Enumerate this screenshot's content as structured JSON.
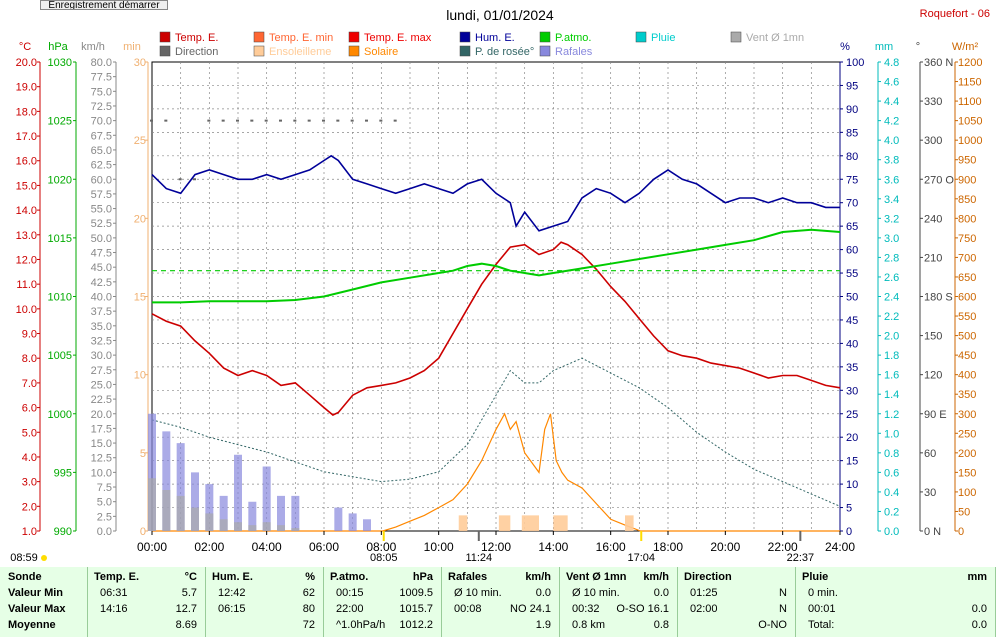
{
  "button_label": "Enregistrement démarrer",
  "station": "Roquefort - 06",
  "chart_data": {
    "type": "line",
    "title": "lundi, 01/01/2024",
    "xlabel": "",
    "ylabel": "",
    "x_ticks": [
      "00:00",
      "02:00",
      "04:00",
      "06:00",
      "08:00",
      "10:00",
      "12:00",
      "14:00",
      "16:00",
      "18:00",
      "20:00",
      "22:00",
      "24:00"
    ],
    "x_range_hours": [
      0,
      24
    ],
    "grid": true,
    "legend_position": "top",
    "legend": [
      {
        "label": "Temp. E.",
        "color": "#cc0000"
      },
      {
        "label": "Temp. E. min",
        "color": "#ff6633"
      },
      {
        "label": "Temp. E. max",
        "color": "#ee0000"
      },
      {
        "label": "Hum. E.",
        "color": "#000099"
      },
      {
        "label": "P.atmo.",
        "color": "#00cc00"
      },
      {
        "label": "Pluie",
        "color": "#00cccc"
      },
      {
        "label": "Vent Ø 1mn",
        "color": "#aaaaaa"
      },
      {
        "label": "Direction",
        "color": "#666666"
      },
      {
        "label": "Ensoleilleme",
        "color": "#ffcc99"
      },
      {
        "label": "Solaire",
        "color": "#ff8800"
      },
      {
        "label": "P. de rosée°",
        "color": "#336666"
      },
      {
        "label": "Rafales",
        "color": "#8888dd"
      }
    ],
    "axes": {
      "temp": {
        "unit": "°C",
        "range": [
          1,
          20
        ],
        "step": 1,
        "color": "#cc0000"
      },
      "press": {
        "unit": "hPa",
        "range": [
          990,
          1030
        ],
        "color": "#00aa00",
        "ticks": [
          990,
          995,
          1000,
          1005,
          1010,
          1015,
          1020,
          1025,
          1030
        ]
      },
      "wind": {
        "unit": "km/h",
        "range": [
          0,
          80
        ],
        "step": 2.5,
        "color": "#888888"
      },
      "min": {
        "unit": "min",
        "range": [
          0,
          30
        ],
        "color": "#f0b070",
        "ticks": [
          0,
          5,
          10,
          15,
          20,
          25,
          30
        ]
      },
      "hum": {
        "unit": "%",
        "range": [
          0,
          100
        ],
        "step": 5,
        "color": "#000080"
      },
      "rain": {
        "unit": "mm",
        "range": [
          0,
          4.8
        ],
        "step": 0.2,
        "color": "#00bbbb"
      },
      "dir": {
        "unit": "°",
        "range": [
          0,
          360
        ],
        "color": "#444444",
        "ticks": [
          0,
          30,
          60,
          90,
          120,
          150,
          180,
          210,
          240,
          270,
          300,
          330,
          360
        ],
        "labels": {
          "0": "N",
          "90": "E",
          "180": "S",
          "270": "O",
          "360": "N"
        }
      },
      "solar": {
        "unit": "W/m²",
        "range": [
          0,
          1200
        ],
        "step": 50,
        "color": "#cc6600"
      }
    },
    "events": {
      "sunrise": "08:05",
      "sunset": "17:04",
      "moonrise": "22:37",
      "moonset": "11:24",
      "top_left_time": "08:59"
    },
    "series": [
      {
        "name": "Temp. E.",
        "axis": "temp",
        "color": "#cc0000",
        "x": [
          0,
          0.5,
          1,
          1.5,
          2,
          2.5,
          3,
          3.5,
          4,
          4.5,
          5,
          5.5,
          6,
          6.31,
          6.5,
          7,
          7.5,
          8,
          8.5,
          9,
          9.5,
          10,
          10.5,
          11,
          11.5,
          12,
          12.5,
          13,
          13.5,
          14,
          14.27,
          14.5,
          15,
          15.5,
          16,
          16.5,
          17,
          17.5,
          18,
          18.5,
          19,
          19.5,
          20,
          20.5,
          21,
          21.5,
          22,
          22.5,
          23,
          23.5,
          24
        ],
        "y": [
          9.8,
          9.5,
          9.3,
          8.7,
          8.2,
          7.6,
          7.3,
          7.5,
          7.3,
          6.9,
          7.0,
          6.5,
          6.0,
          5.7,
          5.8,
          6.5,
          6.8,
          6.9,
          7.0,
          7.2,
          7.5,
          8.0,
          9.0,
          10.0,
          11.0,
          11.8,
          12.5,
          12.6,
          12.2,
          12.4,
          12.7,
          12.6,
          12.2,
          11.6,
          10.9,
          10.3,
          9.6,
          8.9,
          8.3,
          8.1,
          8.0,
          7.8,
          7.7,
          7.6,
          7.4,
          7.2,
          7.3,
          7.3,
          7.1,
          6.9,
          6.8
        ]
      },
      {
        "name": "Hum. E.",
        "axis": "hum",
        "color": "#000099",
        "x": [
          0,
          0.5,
          1,
          1.5,
          2,
          2.5,
          3,
          3.5,
          4,
          4.5,
          5,
          5.5,
          6,
          6.25,
          6.5,
          7,
          7.5,
          8,
          8.5,
          9,
          9.5,
          10,
          10.5,
          11,
          11.5,
          12,
          12.5,
          12.7,
          13,
          13.5,
          14,
          14.5,
          15,
          15.5,
          16,
          16.5,
          17,
          17.5,
          18,
          18.5,
          19,
          19.5,
          20,
          20.5,
          21,
          21.5,
          22,
          22.5,
          23,
          23.5,
          24
        ],
        "y": [
          76,
          73,
          72,
          76,
          77,
          76,
          75,
          75,
          76,
          75,
          76,
          77,
          79,
          80,
          79,
          75,
          74,
          73,
          72,
          73,
          74,
          73,
          72,
          74,
          75,
          72,
          70,
          65,
          68,
          64,
          65,
          66,
          71,
          73,
          72,
          70,
          72,
          75,
          77,
          75,
          74,
          72,
          70,
          71,
          71,
          70,
          71,
          70,
          70,
          69,
          69
        ]
      },
      {
        "name": "P.atmo.",
        "axis": "press",
        "color": "#00cc00",
        "x": [
          0,
          1,
          2,
          3,
          4,
          5,
          6,
          7,
          8,
          9,
          10,
          10.5,
          11,
          11.5,
          12,
          12.5,
          13,
          13.5,
          14,
          15,
          16,
          17,
          18,
          19,
          20,
          21,
          22,
          23,
          24
        ],
        "y": [
          1009.5,
          1009.5,
          1009.6,
          1009.6,
          1009.6,
          1009.7,
          1010.0,
          1010.6,
          1011.2,
          1011.6,
          1012.0,
          1012.2,
          1012.6,
          1012.8,
          1012.6,
          1012.2,
          1012.0,
          1011.8,
          1012.0,
          1012.4,
          1012.8,
          1013.2,
          1013.6,
          1014.0,
          1014.4,
          1014.8,
          1015.5,
          1015.7,
          1015.5
        ]
      },
      {
        "name": "P. de rosée°",
        "axis": "temp",
        "color": "#336666",
        "x": [
          0,
          1,
          2,
          3,
          4,
          5,
          6,
          7,
          8,
          9,
          10,
          11,
          12,
          12.5,
          13,
          13.5,
          14,
          15,
          16,
          17,
          18,
          19,
          20,
          21,
          22,
          23,
          24
        ],
        "y": [
          5.5,
          5.2,
          4.8,
          4.5,
          4.2,
          3.8,
          3.4,
          3.2,
          3.0,
          3.1,
          3.4,
          4.5,
          6.5,
          7.5,
          7.0,
          7.0,
          7.5,
          8.0,
          7.4,
          6.8,
          6.0,
          5.0,
          4.2,
          3.5,
          3.0,
          2.5,
          2.0
        ]
      },
      {
        "name": "Solaire",
        "axis": "solar",
        "color": "#ff8800",
        "x": [
          0,
          8.05,
          8.5,
          9,
          9.5,
          10,
          10.5,
          11,
          11.5,
          12,
          12.3,
          12.5,
          12.7,
          13,
          13.5,
          13.7,
          13.9,
          14.1,
          14.3,
          14.5,
          15,
          15.5,
          16,
          16.5,
          17.04,
          17.5,
          24
        ],
        "y": [
          0,
          0,
          10,
          25,
          40,
          60,
          80,
          120,
          180,
          260,
          300,
          260,
          280,
          200,
          150,
          260,
          300,
          180,
          150,
          130,
          110,
          70,
          30,
          15,
          0,
          0,
          0
        ]
      },
      {
        "name": "Rafales",
        "axis": "wind",
        "color": "#8888dd",
        "x": [
          0,
          0.5,
          1,
          1.5,
          2,
          2.5,
          3,
          3.5,
          4,
          4.5,
          5,
          5.5,
          6,
          6.5,
          7,
          7.5,
          8,
          8.5,
          24
        ],
        "y": [
          20,
          17,
          15,
          10,
          8,
          6,
          13,
          5,
          11,
          6,
          6,
          0,
          0,
          4,
          3,
          2,
          0,
          0,
          0
        ]
      },
      {
        "name": "Vent Ø 1mn",
        "axis": "wind",
        "color": "#aaaaaa",
        "x": [
          0,
          0.5,
          1,
          1.5,
          2,
          2.5,
          3,
          3.5,
          4,
          4.5,
          5,
          5.5,
          6,
          24
        ],
        "y": [
          9,
          7,
          6,
          4,
          3,
          2,
          1.5,
          1,
          1.5,
          1,
          0.5,
          0,
          0,
          0
        ]
      },
      {
        "name": "Direction",
        "axis": "dir",
        "color": "#666666",
        "x": [
          0,
          0.5,
          1,
          1.5,
          2,
          2.5,
          3,
          3.5,
          4,
          4.5,
          5,
          5.5,
          6,
          6.5,
          7,
          7.5,
          8,
          8.5
        ],
        "y": [
          315,
          315,
          270,
          270,
          315,
          315,
          315,
          315,
          315,
          315,
          315,
          315,
          315,
          315,
          315,
          315,
          315,
          315
        ]
      },
      {
        "name": "Ensoleilleme",
        "axis": "min",
        "color": "#ffcc99",
        "x": [
          10.7,
          11,
          12.1,
          12.5,
          12.9,
          13.5,
          14.0,
          14.5,
          16.5,
          16.8
        ],
        "y": [
          0,
          1,
          1,
          1,
          1,
          0,
          1,
          0,
          1,
          1
        ]
      }
    ]
  },
  "stats": {
    "rows": [
      "Sonde",
      "Valeur Min",
      "Valeur Max",
      "Moyenne"
    ],
    "columns": [
      {
        "title": "Temp. E.",
        "unit": "°C",
        "r1": [
          "06:31",
          "5.7"
        ],
        "r2": [
          "14:16",
          "12.7"
        ],
        "r3": [
          "",
          "8.69"
        ]
      },
      {
        "title": "Hum. E.",
        "unit": "%",
        "r1": [
          "12:42",
          "62"
        ],
        "r2": [
          "06:15",
          "80"
        ],
        "r3": [
          "",
          "72"
        ]
      },
      {
        "title": "P.atmo.",
        "unit": "hPa",
        "r1": [
          "00:15",
          "1009.5"
        ],
        "r2": [
          "22:00",
          "1015.7"
        ],
        "r3": [
          "^1.0hPa/h",
          "1012.2"
        ]
      },
      {
        "title": "Rafales",
        "unit": "km/h",
        "r1": [
          "Ø 10 min.",
          "0.0"
        ],
        "r2": [
          "00:08",
          "NO 24.1"
        ],
        "r3": [
          "",
          "1.9"
        ]
      },
      {
        "title": "Vent Ø 1mn",
        "unit": "km/h",
        "r1": [
          "Ø 10 min.",
          "0.0"
        ],
        "r2": [
          "00:32",
          "O-SO 16.1"
        ],
        "r3": [
          "0.8 km",
          "0.8"
        ]
      },
      {
        "title": "Direction",
        "unit": "",
        "r1": [
          "01:25",
          "N"
        ],
        "r2": [
          "02:00",
          "N"
        ],
        "r3": [
          "",
          "O-NO"
        ]
      },
      {
        "title": "Pluie",
        "unit": "mm",
        "r1": [
          "0 min.",
          ""
        ],
        "r2": [
          "00:01",
          "0.0"
        ],
        "r3": [
          "Total:",
          "0.0"
        ]
      }
    ]
  }
}
